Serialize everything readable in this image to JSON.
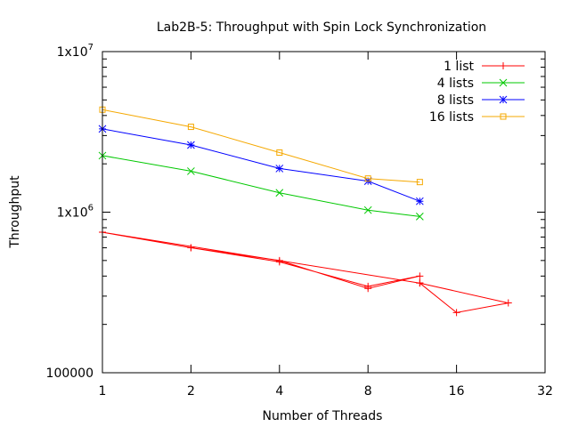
{
  "chart_data": {
    "type": "line",
    "title": "Lab2B-5: Throughput with Spin Lock Synchronization",
    "xlabel": "Number of Threads",
    "ylabel": "Throughput",
    "x_scale": "log2",
    "y_scale": "log10",
    "xlim": [
      1,
      32
    ],
    "ylim": [
      100000,
      10000000
    ],
    "x_ticks": [
      {
        "value": 1,
        "label": "1"
      },
      {
        "value": 2,
        "label": "2"
      },
      {
        "value": 4,
        "label": "4"
      },
      {
        "value": 8,
        "label": "8"
      },
      {
        "value": 16,
        "label": "16"
      },
      {
        "value": 32,
        "label": "32"
      }
    ],
    "y_ticks": [
      {
        "value": 100000,
        "label": "100000"
      },
      {
        "value": 1000000,
        "label": "1x10^6",
        "base": "1x10",
        "exp": "6"
      },
      {
        "value": 10000000,
        "label": "1x10^7",
        "base": "1x10",
        "exp": "7"
      }
    ],
    "grid": false,
    "legend_position": "top-right",
    "series": [
      {
        "name": "1 list",
        "color": "#ff0000",
        "marker": "plus",
        "points": [
          [
            1,
            750000
          ],
          [
            2,
            600000
          ],
          [
            4,
            500000
          ],
          [
            8,
            335000
          ],
          [
            12,
            400000
          ],
          [
            8,
            345000
          ],
          [
            4,
            490000
          ],
          [
            2,
            600000
          ],
          [
            1,
            750000
          ],
          [
            12,
            362000
          ],
          [
            24,
            272000
          ],
          [
            16,
            237000
          ],
          [
            12,
            362000
          ]
        ]
      },
      {
        "name": "4 lists",
        "color": "#00c800",
        "marker": "cross",
        "points": [
          [
            1,
            2250000
          ],
          [
            2,
            1800000
          ],
          [
            4,
            1320000
          ],
          [
            8,
            1030000
          ],
          [
            12,
            940000
          ]
        ]
      },
      {
        "name": "8 lists",
        "color": "#0000ff",
        "marker": "star",
        "points": [
          [
            1,
            3300000
          ],
          [
            2,
            2620000
          ],
          [
            4,
            1870000
          ],
          [
            8,
            1560000
          ],
          [
            12,
            1170000
          ]
        ]
      },
      {
        "name": "16 lists",
        "color": "#f5a800",
        "marker": "box",
        "points": [
          [
            1,
            4350000
          ],
          [
            2,
            3400000
          ],
          [
            4,
            2350000
          ],
          [
            8,
            1620000
          ],
          [
            12,
            1540000
          ]
        ]
      }
    ]
  }
}
